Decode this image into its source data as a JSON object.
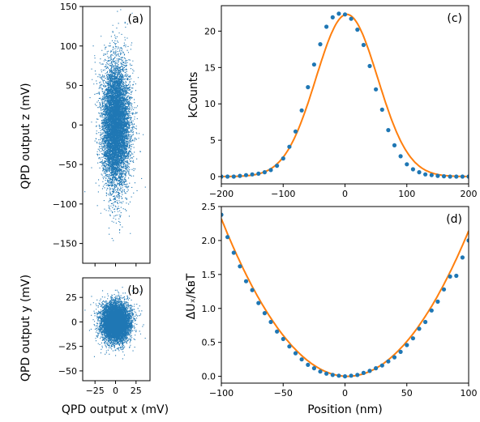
{
  "colors": {
    "points": "#1f77b4",
    "fit": "#ff7f0e"
  },
  "chart_data": [
    {
      "id": "a",
      "type": "scatter",
      "panel_label": "(a)",
      "xlabel": "",
      "ylabel": "QPD output z (mV)",
      "xlim": [
        -40,
        42
      ],
      "ylim": [
        -175,
        150
      ],
      "xticks": [
        -25,
        0,
        25
      ],
      "xtick_labels": [
        "",
        "",
        ""
      ],
      "yticks": [
        -150,
        -100,
        -50,
        0,
        50,
        100,
        150
      ],
      "ytick_labels": [
        "−150",
        "−100",
        "−50",
        "0",
        "50",
        "100",
        "150"
      ],
      "sigma_x": 8,
      "sigma_y": 38,
      "n_points": 9000
    },
    {
      "id": "b",
      "type": "scatter",
      "panel_label": "(b)",
      "xlabel": "QPD output x (mV)",
      "ylabel": "QPD output y (mV)",
      "xlim": [
        -40,
        42
      ],
      "ylim": [
        -60,
        45
      ],
      "xticks": [
        -25,
        0,
        25
      ],
      "xtick_labels": [
        "−25",
        "0",
        "25"
      ],
      "yticks": [
        -50,
        -25,
        0,
        25
      ],
      "ytick_labels": [
        "−50",
        "−25",
        "0",
        "25"
      ],
      "sigma_x": 8,
      "sigma_y": 9,
      "n_points": 9000
    },
    {
      "id": "c",
      "type": "line+scatter",
      "panel_label": "(c)",
      "xlabel": "",
      "ylabel": "kCounts",
      "xlim": [
        -200,
        200
      ],
      "ylim": [
        -1,
        23.5
      ],
      "xticks": [
        -200,
        -100,
        0,
        100,
        200
      ],
      "xtick_labels": [
        "−200",
        "−100",
        "0",
        "100",
        "200"
      ],
      "yticks": [
        0,
        5,
        10,
        15,
        20
      ],
      "ytick_labels": [
        "0",
        "5",
        "10",
        "15",
        "20"
      ],
      "x": [
        -200,
        -190,
        -180,
        -170,
        -160,
        -150,
        -140,
        -130,
        -120,
        -110,
        -100,
        -90,
        -80,
        -70,
        -60,
        -50,
        -40,
        -30,
        -20,
        -10,
        0,
        10,
        20,
        30,
        40,
        50,
        60,
        70,
        80,
        90,
        100,
        110,
        120,
        130,
        140,
        150,
        160,
        170,
        180,
        190,
        200
      ],
      "values": [
        0.0,
        0.0,
        0.0,
        0.1,
        0.2,
        0.3,
        0.4,
        0.6,
        0.9,
        1.5,
        2.5,
        4.1,
        6.2,
        9.1,
        12.3,
        15.4,
        18.2,
        20.6,
        21.9,
        22.4,
        22.3,
        21.7,
        20.2,
        18.1,
        15.2,
        12.0,
        9.2,
        6.4,
        4.3,
        2.8,
        1.7,
        1.0,
        0.6,
        0.3,
        0.2,
        0.1,
        0.05,
        0.0,
        0.0,
        0.0,
        0.0
      ],
      "fit": {
        "amplitude": 22.3,
        "center": 3,
        "sigma": 50
      }
    },
    {
      "id": "d",
      "type": "line+scatter",
      "panel_label": "(d)",
      "xlabel": "Position (nm)",
      "ylabel": "ΔUₓ/KʙT",
      "xlim": [
        -100,
        100
      ],
      "ylim": [
        -0.1,
        2.5
      ],
      "xticks": [
        -100,
        -50,
        0,
        50,
        100
      ],
      "xtick_labels": [
        "−100",
        "−50",
        "0",
        "50",
        "100"
      ],
      "yticks": [
        0.0,
        0.5,
        1.0,
        1.5,
        2.0,
        2.5
      ],
      "ytick_labels": [
        "0.0",
        "0.5",
        "1.0",
        "1.5",
        "2.0",
        "2.5"
      ],
      "x": [
        -100,
        -95,
        -90,
        -85,
        -80,
        -75,
        -70,
        -65,
        -60,
        -55,
        -50,
        -45,
        -40,
        -35,
        -30,
        -25,
        -20,
        -15,
        -10,
        -5,
        0,
        5,
        10,
        15,
        20,
        25,
        30,
        35,
        40,
        45,
        50,
        55,
        60,
        65,
        70,
        75,
        80,
        85,
        90,
        95,
        100
      ],
      "values": [
        2.38,
        2.05,
        1.82,
        1.62,
        1.4,
        1.27,
        1.08,
        0.93,
        0.8,
        0.66,
        0.55,
        0.44,
        0.34,
        0.25,
        0.17,
        0.12,
        0.07,
        0.04,
        0.02,
        0.01,
        0.0,
        0.01,
        0.02,
        0.05,
        0.08,
        0.12,
        0.16,
        0.22,
        0.28,
        0.36,
        0.46,
        0.56,
        0.7,
        0.8,
        0.97,
        1.1,
        1.28,
        1.47,
        1.48,
        1.75,
        2.0
      ],
      "fit": {
        "coefficient": 0.000223,
        "center": 2
      }
    }
  ]
}
